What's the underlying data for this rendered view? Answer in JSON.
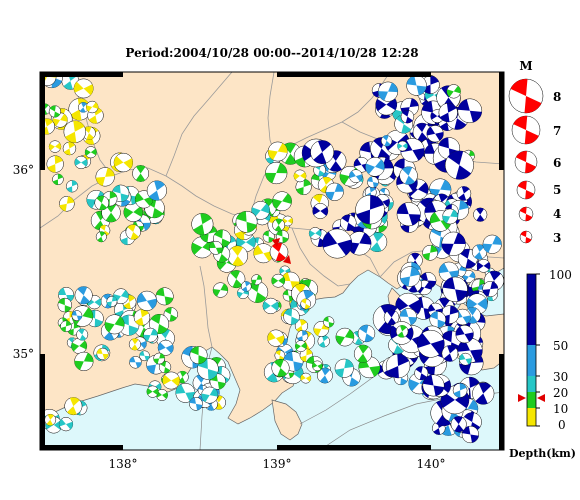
{
  "title": "Period:2004/10/28 00:00--2014/10/28 12:28",
  "map": {
    "lon_range": [
      137.45,
      140.55
    ],
    "lat_range": [
      34.55,
      36.55
    ],
    "lon_ticks": [
      "138°",
      "139°",
      "140°"
    ],
    "lat_ticks": [
      "36°",
      "35°"
    ],
    "colors": {
      "land": "#fde5c6",
      "sea": "#ddf8fb",
      "frame": "#000000",
      "boundary": "#9a9a9a"
    }
  },
  "magnitude_legend": {
    "title": "M",
    "items": [
      "8",
      "7",
      "6",
      "5",
      "4",
      "3"
    ]
  },
  "depth_scale": {
    "label": "Depth(km)",
    "ticks": [
      "100",
      "50",
      "30",
      "20",
      "10",
      "0"
    ],
    "colors": [
      "#f5e600",
      "#1fcc1f",
      "#26c6c6",
      "#2a9be0",
      "#00009e"
    ]
  },
  "marker": {
    "lon": 139.02,
    "lat": 35.52,
    "color": "#ff0000"
  }
}
